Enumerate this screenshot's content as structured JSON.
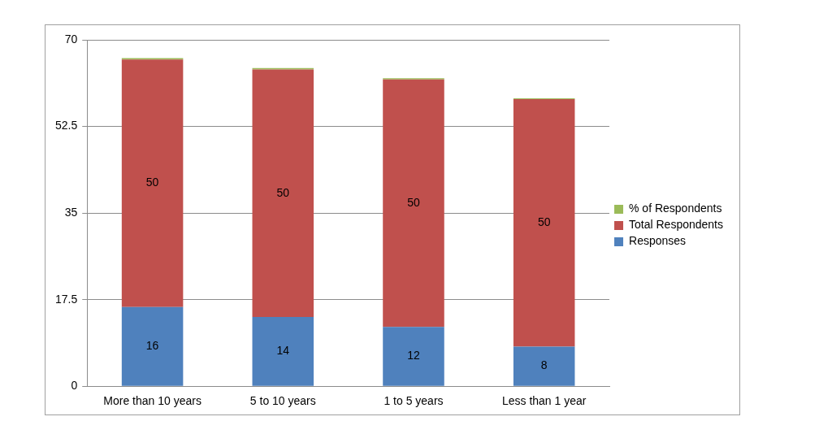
{
  "chart_data": {
    "type": "bar",
    "categories": [
      "More than 10 years",
      "5 to 10 years",
      "1 to 5 years",
      "Less than 1 year"
    ],
    "series": [
      {
        "name": "Responses",
        "color": "#4f81bd",
        "values": [
          16,
          14,
          12,
          8
        ],
        "data_labels": true
      },
      {
        "name": "Total Respondents",
        "color": "#c0504d",
        "values": [
          50,
          50,
          50,
          50
        ],
        "data_labels": true
      },
      {
        "name": "% of Respondents",
        "color": "#9bbb59",
        "values": [
          0.32,
          0.28,
          0.24,
          0.16
        ]
      }
    ],
    "ylim": [
      0,
      70
    ],
    "yticks": [
      0,
      17.5,
      35,
      52.5,
      70
    ],
    "grid": true,
    "stacked": true,
    "legend": "right"
  }
}
